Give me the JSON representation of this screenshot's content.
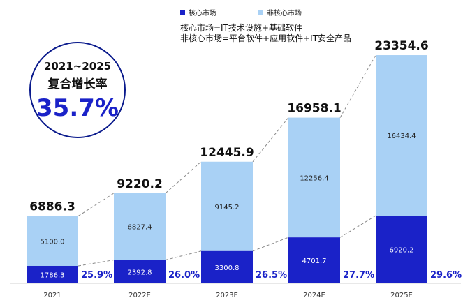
{
  "legend": [
    {
      "name": "核心市场",
      "color": "#1a22c8"
    },
    {
      "name": "非核心市场",
      "color": "#a9d1f5"
    }
  ],
  "notes": [
    "核心市场=IT技术设施+基础软件",
    "非核心市场=平台软件+应用软件+IT安全产品"
  ],
  "cagr": {
    "period": "2021~2025",
    "label": "复合增长率",
    "value": "35.7%"
  },
  "chart_data": {
    "type": "bar",
    "stacked": true,
    "categories": [
      "2021",
      "2022E",
      "2023E",
      "2024E",
      "2025E"
    ],
    "series": [
      {
        "name": "核心市场",
        "color": "#1a22c8",
        "values": [
          1786.3,
          2392.8,
          3300.8,
          4701.7,
          6920.2
        ],
        "labels": [
          "1786.3",
          "2392.8",
          "3300.8",
          "4701.7",
          "6920.2"
        ]
      },
      {
        "name": "非核心市场",
        "color": "#a9d1f5",
        "values": [
          5100.0,
          6827.4,
          9145.2,
          12256.4,
          16434.4
        ],
        "labels": [
          "5100.0",
          "6827.4",
          "9145.2",
          "12256.4",
          "16434.4"
        ]
      }
    ],
    "totals": [
      "6886.3",
      "9220.2",
      "12445.9",
      "16958.1",
      "23354.6"
    ],
    "core_share": [
      "25.9%",
      "26.0%",
      "26.5%",
      "27.7%",
      "29.6%"
    ],
    "ylim": [
      0,
      25000
    ]
  }
}
